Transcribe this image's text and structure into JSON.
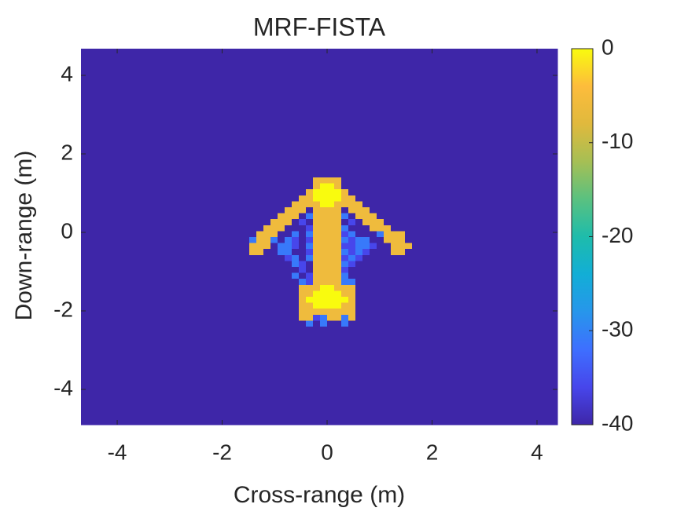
{
  "chart_data": {
    "type": "heatmap",
    "title": "MRF-FISTA",
    "xlabel": "Cross-range (m)",
    "ylabel": "Down-range (m)",
    "xlim": [
      -4.69,
      4.39
    ],
    "ylim": [
      -4.9,
      4.68
    ],
    "xticks": [
      -4,
      -2,
      0,
      2,
      4
    ],
    "yticks": [
      -4,
      -2,
      0,
      2,
      4
    ],
    "clim": [
      -40,
      0
    ],
    "colorbar_ticks": [
      0,
      -10,
      -20,
      -30,
      -40
    ],
    "colormap": [
      "#3e26a8",
      "#4746eb",
      "#3e6fff",
      "#2796eb",
      "#12aed6",
      "#1ebcab",
      "#5ac180",
      "#a6bf54",
      "#e0b93d",
      "#fdbc3c",
      "#f9fb0e"
    ],
    "xedges": [
      -4.69,
      -1.62,
      -1.485,
      -1.35,
      -1.215,
      -1.08,
      -0.945,
      -0.81,
      -0.675,
      -0.54,
      -0.405,
      -0.27,
      -0.135,
      0,
      0.135,
      0.27,
      0.405,
      0.54,
      0.675,
      0.81,
      0.945,
      1.08,
      1.215,
      1.35,
      1.485,
      1.62,
      4.39
    ],
    "yedges": [
      4.68,
      1.4,
      1.248,
      1.096,
      0.944,
      0.792,
      0.64,
      0.488,
      0.336,
      0.184,
      0.032,
      -0.12,
      -0.272,
      -0.424,
      -0.576,
      -0.728,
      -0.88,
      -1.032,
      -1.184,
      -1.336,
      -1.488,
      -1.64,
      -1.792,
      -1.944,
      -2.096,
      -2.248,
      -2.4,
      -4.9
    ],
    "z": [
      [
        -40,
        -40,
        -40,
        -40,
        -40,
        -40,
        -40,
        -40,
        -40,
        -40,
        -40,
        -40,
        -40,
        -40,
        -40,
        -40,
        -40,
        -40,
        -40,
        -40,
        -40,
        -40,
        -40,
        -40,
        -40,
        -40
      ],
      [
        -40,
        -40,
        -40,
        -40,
        -40,
        -40,
        -40,
        -40,
        -40,
        -40,
        -40,
        -6,
        -6,
        -6,
        -6,
        -40,
        -40,
        -40,
        -40,
        -40,
        -40,
        -40,
        -40,
        -40,
        -40,
        -40
      ],
      [
        -40,
        -40,
        -40,
        -40,
        -40,
        -40,
        -40,
        -40,
        -40,
        -40,
        -40,
        -6,
        0,
        0,
        -6,
        -40,
        -40,
        -40,
        -40,
        -40,
        -40,
        -40,
        -40,
        -40,
        -40,
        -40
      ],
      [
        -40,
        -40,
        -40,
        -40,
        -40,
        -40,
        -40,
        -40,
        -40,
        -40,
        -6,
        0,
        0,
        0,
        0,
        -6,
        -40,
        -40,
        -40,
        -40,
        -40,
        -40,
        -40,
        -40,
        -40,
        -40
      ],
      [
        -40,
        -40,
        -40,
        -40,
        -40,
        -40,
        -40,
        -40,
        -40,
        -6,
        -6,
        0,
        0,
        0,
        0,
        -6,
        -6,
        -40,
        -40,
        -40,
        -40,
        -40,
        -40,
        -40,
        -40,
        -40
      ],
      [
        -40,
        -40,
        -40,
        -40,
        -40,
        -40,
        -40,
        -40,
        -6,
        -6,
        -6,
        -6,
        0,
        0,
        -6,
        -6,
        -6,
        -6,
        -40,
        -40,
        -40,
        -40,
        -40,
        -40,
        -40,
        -40
      ],
      [
        -40,
        -40,
        -40,
        -40,
        -40,
        -40,
        -40,
        -6,
        -6,
        -6,
        -40,
        -6,
        -6,
        -6,
        -6,
        -40,
        -6,
        -6,
        -6,
        -40,
        -40,
        -40,
        -40,
        -40,
        -40,
        -40
      ],
      [
        -40,
        -40,
        -40,
        -40,
        -40,
        -40,
        -6,
        -6,
        -6,
        -40,
        -31,
        -6,
        -6,
        -6,
        -6,
        -31,
        -40,
        -6,
        -6,
        -6,
        -40,
        -40,
        -40,
        -40,
        -40,
        -40
      ],
      [
        -40,
        -40,
        -40,
        -40,
        -40,
        -6,
        -6,
        -6,
        -40,
        -36,
        -40,
        -6,
        -6,
        -6,
        -6,
        -40,
        -36,
        -40,
        -6,
        -6,
        -6,
        -40,
        -40,
        -40,
        -40,
        -40
      ],
      [
        -40,
        -40,
        -40,
        -40,
        -6,
        -6,
        -6,
        -40,
        -40,
        -40,
        -36,
        -6,
        -6,
        -6,
        -6,
        -31,
        -40,
        -40,
        -40,
        -6,
        -6,
        -6,
        -40,
        -40,
        -40,
        -40
      ],
      [
        -40,
        -40,
        -40,
        -6,
        -6,
        -6,
        -40,
        -40,
        -31,
        -40,
        -31,
        -6,
        -6,
        -6,
        -6,
        -36,
        -31,
        -40,
        -40,
        -40,
        -31,
        -6,
        -6,
        -6,
        -40,
        -40
      ],
      [
        -40,
        -40,
        -31,
        -6,
        -6,
        -31,
        -40,
        -31,
        -36,
        -40,
        -36,
        -6,
        -6,
        -6,
        -6,
        -31,
        -36,
        -31,
        -31,
        -40,
        -40,
        -6,
        -6,
        -6,
        -40,
        -40
      ],
      [
        -40,
        -40,
        -6,
        -6,
        -6,
        -40,
        -31,
        -31,
        -36,
        -40,
        -31,
        -6,
        -6,
        -6,
        -6,
        -36,
        -36,
        -31,
        -31,
        -36,
        -40,
        -40,
        -6,
        -6,
        -6,
        -40
      ],
      [
        -40,
        -40,
        -6,
        -6,
        -40,
        -40,
        -31,
        -31,
        -40,
        -40,
        -36,
        -6,
        -6,
        -6,
        -6,
        -31,
        -36,
        -31,
        -36,
        -40,
        -40,
        -40,
        -6,
        -6,
        -40,
        -40
      ],
      [
        -40,
        -40,
        -40,
        -40,
        -40,
        -40,
        -40,
        -36,
        -31,
        -40,
        -31,
        -6,
        -6,
        -6,
        -6,
        -36,
        -31,
        -36,
        -40,
        -40,
        -40,
        -40,
        -40,
        -40,
        -40,
        -40
      ],
      [
        -40,
        -40,
        -40,
        -40,
        -40,
        -40,
        -40,
        -40,
        -31,
        -36,
        -40,
        -6,
        -6,
        -6,
        -6,
        -31,
        -36,
        -40,
        -40,
        -40,
        -40,
        -40,
        -40,
        -40,
        -40,
        -40
      ],
      [
        -40,
        -40,
        -40,
        -40,
        -40,
        -40,
        -40,
        -40,
        -40,
        -36,
        -40,
        -6,
        -6,
        -6,
        -6,
        -36,
        -40,
        -40,
        -40,
        -40,
        -40,
        -40,
        -40,
        -40,
        -40,
        -40
      ],
      [
        -40,
        -40,
        -40,
        -40,
        -40,
        -40,
        -40,
        -40,
        -31,
        -40,
        -36,
        -6,
        -6,
        -6,
        -6,
        -31,
        -40,
        -40,
        -40,
        -40,
        -40,
        -40,
        -40,
        -40,
        -40,
        -40
      ],
      [
        -40,
        -40,
        -40,
        -40,
        -40,
        -40,
        -40,
        -40,
        -40,
        -31,
        -36,
        -6,
        -6,
        -6,
        -6,
        -31,
        -31,
        -40,
        -40,
        -40,
        -40,
        -40,
        -40,
        -40,
        -40,
        -40
      ],
      [
        -40,
        -40,
        -40,
        -40,
        -40,
        -40,
        -40,
        -40,
        -40,
        -6,
        -6,
        -6,
        0,
        0,
        -6,
        -6,
        -6,
        -40,
        -40,
        -40,
        -40,
        -40,
        -40,
        -40,
        -40,
        -40
      ],
      [
        -40,
        -40,
        -40,
        -40,
        -40,
        -40,
        -40,
        -40,
        -40,
        -6,
        -6,
        0,
        0,
        0,
        0,
        -6,
        -6,
        -40,
        -40,
        -40,
        -40,
        -40,
        -40,
        -40,
        -40,
        -40
      ],
      [
        -40,
        -40,
        -40,
        -40,
        -40,
        -40,
        -40,
        -40,
        -40,
        -6,
        0,
        0,
        0,
        0,
        0,
        0,
        -6,
        -40,
        -40,
        -40,
        -40,
        -40,
        -40,
        -40,
        -40,
        -40
      ],
      [
        -40,
        -40,
        -40,
        -40,
        -40,
        -40,
        -40,
        -40,
        -40,
        -6,
        -6,
        0,
        0,
        0,
        0,
        -6,
        -6,
        -40,
        -40,
        -40,
        -40,
        -40,
        -40,
        -40,
        -40,
        -40
      ],
      [
        -40,
        -40,
        -40,
        -40,
        -40,
        -40,
        -40,
        -40,
        -40,
        -6,
        -6,
        -6,
        -6,
        -6,
        -6,
        -6,
        -6,
        -40,
        -40,
        -40,
        -40,
        -40,
        -40,
        -40,
        -40,
        -40
      ],
      [
        -40,
        -40,
        -40,
        -40,
        -40,
        -40,
        -40,
        -40,
        -40,
        -6,
        -6,
        -36,
        -31,
        -6,
        -6,
        -31,
        -6,
        -40,
        -40,
        -40,
        -40,
        -40,
        -40,
        -40,
        -40,
        -40
      ],
      [
        -40,
        -40,
        -40,
        -40,
        -40,
        -40,
        -40,
        -40,
        -40,
        -40,
        -31,
        -40,
        -31,
        -40,
        -40,
        -31,
        -40,
        -40,
        -40,
        -40,
        -40,
        -40,
        -40,
        -40,
        -40,
        -40
      ],
      [
        -40,
        -40,
        -40,
        -40,
        -40,
        -40,
        -40,
        -40,
        -40,
        -40,
        -40,
        -40,
        -40,
        -40,
        -40,
        -40,
        -40,
        -40,
        -40,
        -40,
        -40,
        -40,
        -40,
        -40,
        -40,
        -40
      ]
    ]
  }
}
